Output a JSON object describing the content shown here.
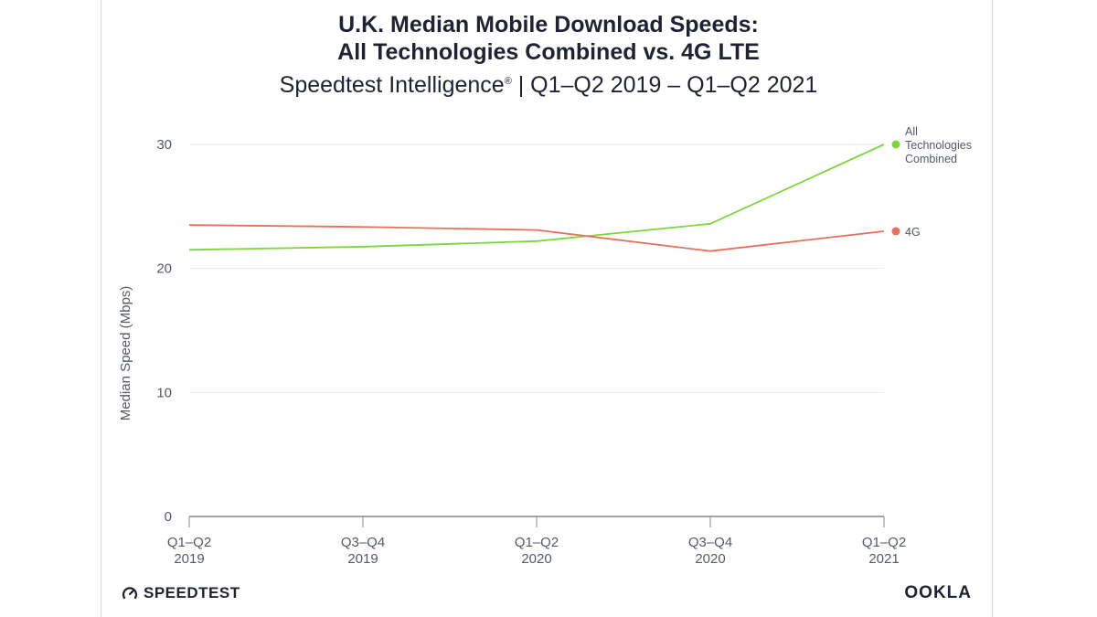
{
  "title": {
    "line1": "U.K. Median Mobile Download Speeds:",
    "line2": "All Technologies Combined vs. 4G LTE"
  },
  "subtitle": {
    "prefix": "Speedtest Intelligence",
    "registered": "®",
    "suffix": " | Q1–Q2 2019 – Q1–Q2 2021"
  },
  "footer": {
    "left_brand": "SPEEDTEST",
    "left_icon": "speedtest-gauge-icon",
    "right_brand": "OOKLA"
  },
  "colors": {
    "all_tech": "#7ed63e",
    "fourg": "#e8705a",
    "grid": "#e8e8e8",
    "axis": "#888888",
    "text": "#1f2233"
  },
  "chart_data": {
    "type": "line",
    "ylabel": "Median Speed (Mbps)",
    "xlabel": "",
    "ylim": [
      0,
      30
    ],
    "yticks": [
      0,
      10,
      20,
      30
    ],
    "grid": true,
    "legend_placement": "right",
    "categories": [
      [
        "Q1–Q2",
        "2019"
      ],
      [
        "Q3–Q4",
        "2019"
      ],
      [
        "Q1–Q2",
        "2020"
      ],
      [
        "Q3–Q4",
        "2020"
      ],
      [
        "Q1–Q2",
        "2021"
      ]
    ],
    "series": [
      {
        "name": [
          "All",
          "Technologies",
          "Combined"
        ],
        "key": "all_tech",
        "values": [
          21.5,
          21.75,
          22.2,
          23.6,
          30.0
        ]
      },
      {
        "name": [
          "4G"
        ],
        "key": "fourg",
        "values": [
          23.5,
          23.35,
          23.1,
          21.4,
          23.0
        ]
      }
    ]
  }
}
